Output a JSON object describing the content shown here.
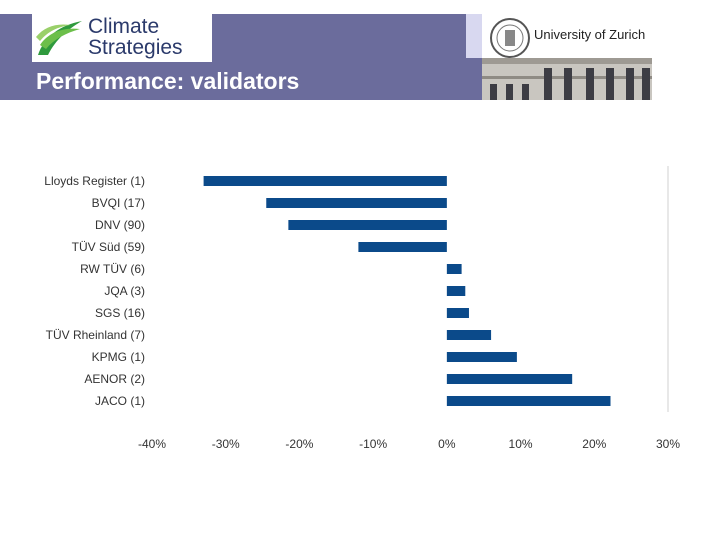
{
  "header": {
    "logo_line1": "Climate",
    "logo_line2": "Strategies",
    "title": "Performance: validators",
    "university": "University of Zurich"
  },
  "colors": {
    "bar": "#0b4a8a",
    "header_band": "#6b6c9c",
    "grid": "#d0d0d0"
  },
  "chart_data": {
    "type": "bar",
    "orientation": "horizontal",
    "title": "",
    "xlabel": "",
    "ylabel": "",
    "categories": [
      "Lloyds Register (1)",
      "BVQI (17)",
      "DNV (90)",
      "TÜV Süd (59)",
      "RW TÜV (6)",
      "JQA (3)",
      "SGS (16)",
      "TÜV Rheinland (7)",
      "KPMG (1)",
      "AENOR (2)",
      "JACO (1)"
    ],
    "values": [
      -0.33,
      -0.245,
      -0.215,
      -0.12,
      0.02,
      0.025,
      0.03,
      0.06,
      0.095,
      0.17,
      0.222
    ],
    "xlim": [
      -0.4,
      0.3
    ],
    "xticks": [
      "-40%",
      "-30%",
      "-20%",
      "-10%",
      "0%",
      "10%",
      "20%",
      "30%"
    ],
    "grid": "right-bound line only"
  }
}
